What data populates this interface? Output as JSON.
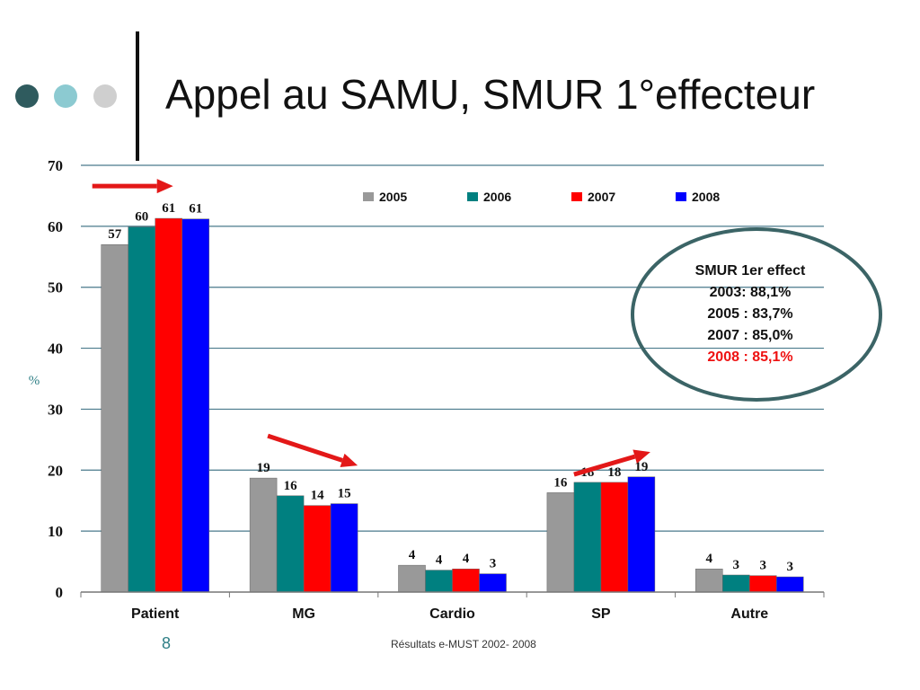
{
  "slide": {
    "title": "Appel au SAMU, SMUR 1°effecteur",
    "number": "8",
    "footer": "Résultats e-MUST 2002- 2008"
  },
  "callout": {
    "lines": [
      "SMUR 1er effect",
      "2003: 88,1%",
      "2005 : 83,7%",
      "2007 : 85,0%",
      "2008 : 85,1%"
    ],
    "highlight_color": "#ee1111"
  },
  "chart_data": {
    "type": "bar",
    "ylabel": "%",
    "ylim": [
      0,
      70
    ],
    "yticks": [
      0,
      10,
      20,
      30,
      40,
      50,
      60,
      70
    ],
    "grid": true,
    "legend_position": "top-right",
    "categories": [
      "Patient",
      "MG",
      "Cardio",
      "SP",
      "Autre"
    ],
    "series": [
      {
        "name": "2005",
        "color": "#999999",
        "values": [
          57,
          19,
          4,
          16,
          4
        ],
        "display_values": [
          57,
          18.7,
          4.4,
          16.3,
          3.8
        ]
      },
      {
        "name": "2006",
        "color": "#008080",
        "values": [
          60,
          16,
          4,
          18,
          3
        ],
        "display_values": [
          59.9,
          15.8,
          3.6,
          18,
          2.8
        ]
      },
      {
        "name": "2007",
        "color": "#ff0000",
        "values": [
          61,
          14,
          4,
          18,
          3
        ],
        "display_values": [
          61.3,
          14.2,
          3.8,
          18,
          2.7
        ]
      },
      {
        "name": "2008",
        "color": "#0000ff",
        "values": [
          61,
          15,
          3,
          19,
          3
        ],
        "display_values": [
          61.2,
          14.5,
          3,
          18.9,
          2.5
        ]
      }
    ],
    "trend_arrows": [
      {
        "category": "Patient",
        "direction": "flat"
      },
      {
        "category": "MG",
        "direction": "down"
      },
      {
        "category": "SP",
        "direction": "up"
      }
    ]
  }
}
